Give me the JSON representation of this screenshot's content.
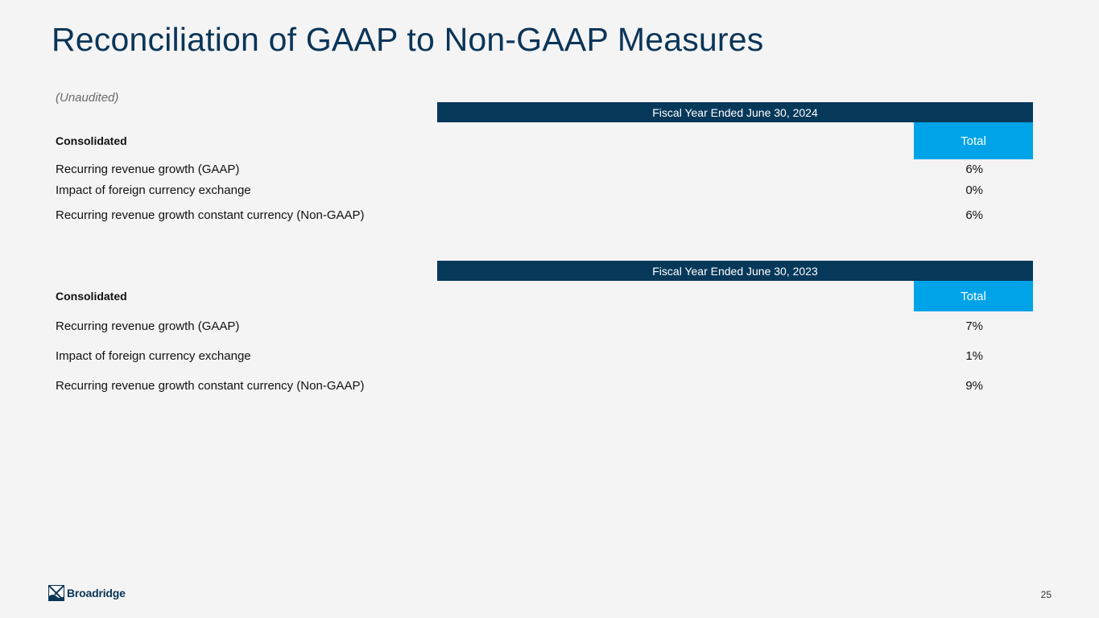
{
  "title": "Reconciliation of GAAP to Non-GAAP Measures",
  "subtitle": "(Unaudited)",
  "tables": [
    {
      "period": "Fiscal Year Ended June 30, 2024",
      "section_label": "Consolidated",
      "column": "Total",
      "rows": [
        {
          "label": "Recurring revenue growth (GAAP)",
          "value": "6%"
        },
        {
          "label": "Impact of foreign currency exchange",
          "value": "0%"
        },
        {
          "label": "Recurring revenue growth constant currency (Non-GAAP)",
          "value": "6%"
        }
      ]
    },
    {
      "period": "Fiscal Year Ended June 30, 2023",
      "section_label": "Consolidated",
      "column": "Total",
      "rows": [
        {
          "label": "Recurring revenue growth (GAAP)",
          "value": "7%"
        },
        {
          "label": "Impact of foreign currency exchange",
          "value": "1%"
        },
        {
          "label": "Recurring revenue growth constant currency (Non-GAAP)",
          "value": "9%"
        }
      ]
    }
  ],
  "footer": {
    "logo_text": "Broadridge",
    "page_number": "25"
  },
  "colors": {
    "title": "#0b3557",
    "header_bar": "#06385a",
    "total_cell": "#00a3e8",
    "background": "#f4f4f5"
  }
}
